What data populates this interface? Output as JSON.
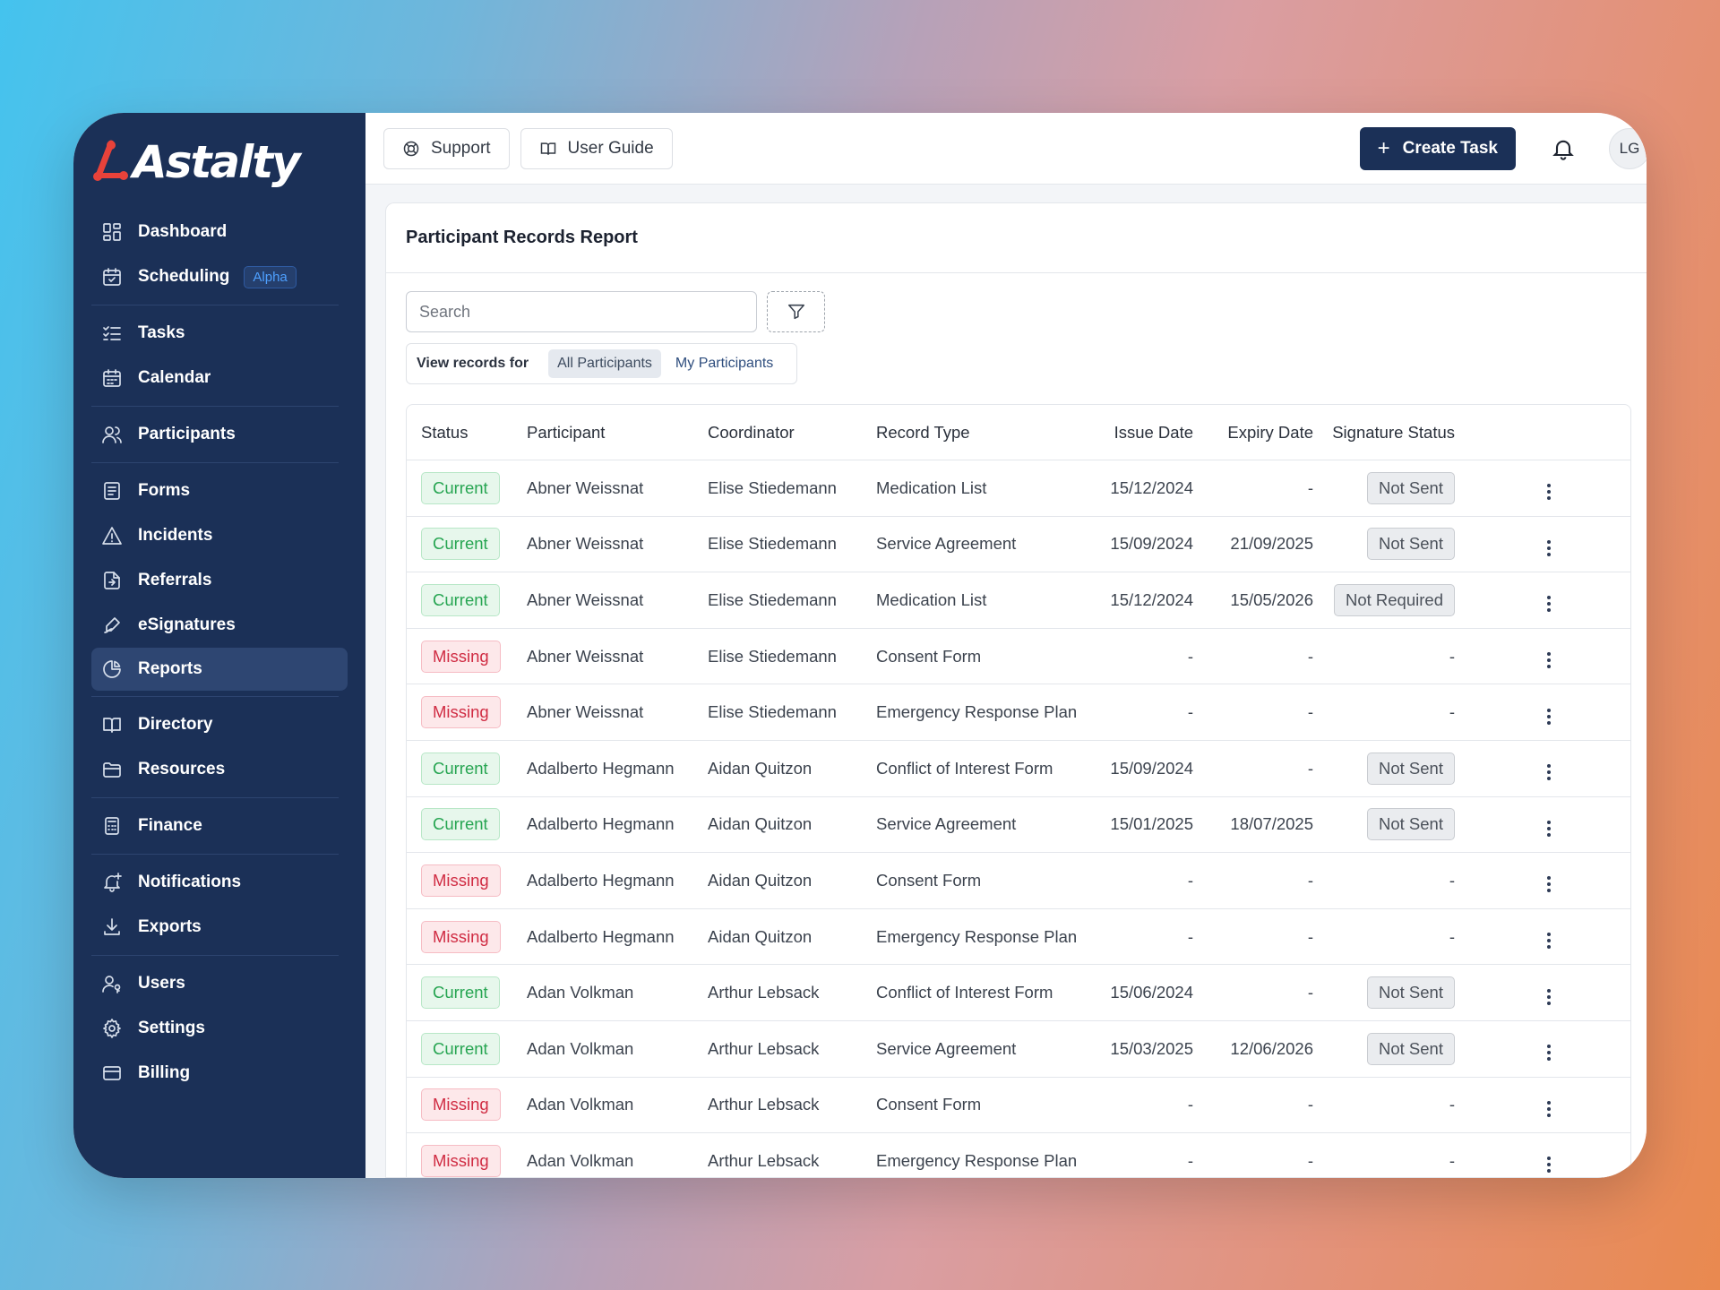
{
  "brand": {
    "name": "Astalty",
    "accent": "#e8423a"
  },
  "sidebar": {
    "groups": [
      {
        "items": [
          {
            "label": "Dashboard",
            "icon": "dashboard-icon"
          },
          {
            "label": "Scheduling",
            "icon": "calendar-check-icon",
            "badge": "Alpha"
          }
        ]
      },
      {
        "items": [
          {
            "label": "Tasks",
            "icon": "tasks-icon"
          },
          {
            "label": "Calendar",
            "icon": "calendar-icon"
          }
        ]
      },
      {
        "items": [
          {
            "label": "Participants",
            "icon": "users-icon"
          }
        ]
      },
      {
        "items": [
          {
            "label": "Forms",
            "icon": "form-icon"
          },
          {
            "label": "Incidents",
            "icon": "warning-icon"
          },
          {
            "label": "Referrals",
            "icon": "referral-icon"
          },
          {
            "label": "eSignatures",
            "icon": "signature-icon"
          },
          {
            "label": "Reports",
            "icon": "pie-chart-icon",
            "active": true
          }
        ]
      },
      {
        "items": [
          {
            "label": "Directory",
            "icon": "book-icon"
          },
          {
            "label": "Resources",
            "icon": "folder-icon"
          }
        ]
      },
      {
        "items": [
          {
            "label": "Finance",
            "icon": "calculator-icon"
          }
        ]
      },
      {
        "items": [
          {
            "label": "Notifications",
            "icon": "bell-plus-icon"
          },
          {
            "label": "Exports",
            "icon": "download-icon"
          }
        ]
      },
      {
        "items": [
          {
            "label": "Users",
            "icon": "user-key-icon"
          },
          {
            "label": "Settings",
            "icon": "gear-icon"
          },
          {
            "label": "Billing",
            "icon": "credit-card-icon"
          }
        ]
      }
    ]
  },
  "topbar": {
    "support_label": "Support",
    "guide_label": "User Guide",
    "create_label": "Create Task",
    "avatar_initials": "LG"
  },
  "report": {
    "title": "Participant Records Report",
    "search_placeholder": "Search",
    "view_label": "View records for",
    "view_options": [
      "All Participants",
      "My Participants"
    ],
    "view_selected": "All Participants",
    "columns": [
      "Status",
      "Participant",
      "Coordinator",
      "Record Type",
      "Issue Date",
      "Expiry Date",
      "Signature Status"
    ],
    "rows": [
      {
        "status": "Current",
        "participant": "Abner Weissnat",
        "coordinator": "Elise Stiedemann",
        "type": "Medication List",
        "issue": "15/12/2024",
        "expiry": "-",
        "signature": "Not Sent"
      },
      {
        "status": "Current",
        "participant": "Abner Weissnat",
        "coordinator": "Elise Stiedemann",
        "type": "Service Agreement",
        "issue": "15/09/2024",
        "expiry": "21/09/2025",
        "signature": "Not Sent"
      },
      {
        "status": "Current",
        "participant": "Abner Weissnat",
        "coordinator": "Elise Stiedemann",
        "type": "Medication List",
        "issue": "15/12/2024",
        "expiry": "15/05/2026",
        "signature": "Not Required"
      },
      {
        "status": "Missing",
        "participant": "Abner Weissnat",
        "coordinator": "Elise Stiedemann",
        "type": "Consent Form",
        "issue": "-",
        "expiry": "-",
        "signature": "-"
      },
      {
        "status": "Missing",
        "participant": "Abner Weissnat",
        "coordinator": "Elise Stiedemann",
        "type": "Emergency Response Plan",
        "issue": "-",
        "expiry": "-",
        "signature": "-"
      },
      {
        "status": "Current",
        "participant": "Adalberto Hegmann",
        "coordinator": "Aidan Quitzon",
        "type": "Conflict of Interest Form",
        "issue": "15/09/2024",
        "expiry": "-",
        "signature": "Not Sent"
      },
      {
        "status": "Current",
        "participant": "Adalberto Hegmann",
        "coordinator": "Aidan Quitzon",
        "type": "Service Agreement",
        "issue": "15/01/2025",
        "expiry": "18/07/2025",
        "signature": "Not Sent"
      },
      {
        "status": "Missing",
        "participant": "Adalberto Hegmann",
        "coordinator": "Aidan Quitzon",
        "type": "Consent Form",
        "issue": "-",
        "expiry": "-",
        "signature": "-"
      },
      {
        "status": "Missing",
        "participant": "Adalberto Hegmann",
        "coordinator": "Aidan Quitzon",
        "type": "Emergency Response Plan",
        "issue": "-",
        "expiry": "-",
        "signature": "-"
      },
      {
        "status": "Current",
        "participant": "Adan Volkman",
        "coordinator": "Arthur Lebsack",
        "type": "Conflict of Interest Form",
        "issue": "15/06/2024",
        "expiry": "-",
        "signature": "Not Sent"
      },
      {
        "status": "Current",
        "participant": "Adan Volkman",
        "coordinator": "Arthur Lebsack",
        "type": "Service Agreement",
        "issue": "15/03/2025",
        "expiry": "12/06/2026",
        "signature": "Not Sent"
      },
      {
        "status": "Missing",
        "participant": "Adan Volkman",
        "coordinator": "Arthur Lebsack",
        "type": "Consent Form",
        "issue": "-",
        "expiry": "-",
        "signature": "-"
      },
      {
        "status": "Missing",
        "participant": "Adan Volkman",
        "coordinator": "Arthur Lebsack",
        "type": "Emergency Response Plan",
        "issue": "-",
        "expiry": "-",
        "signature": "-"
      }
    ]
  }
}
